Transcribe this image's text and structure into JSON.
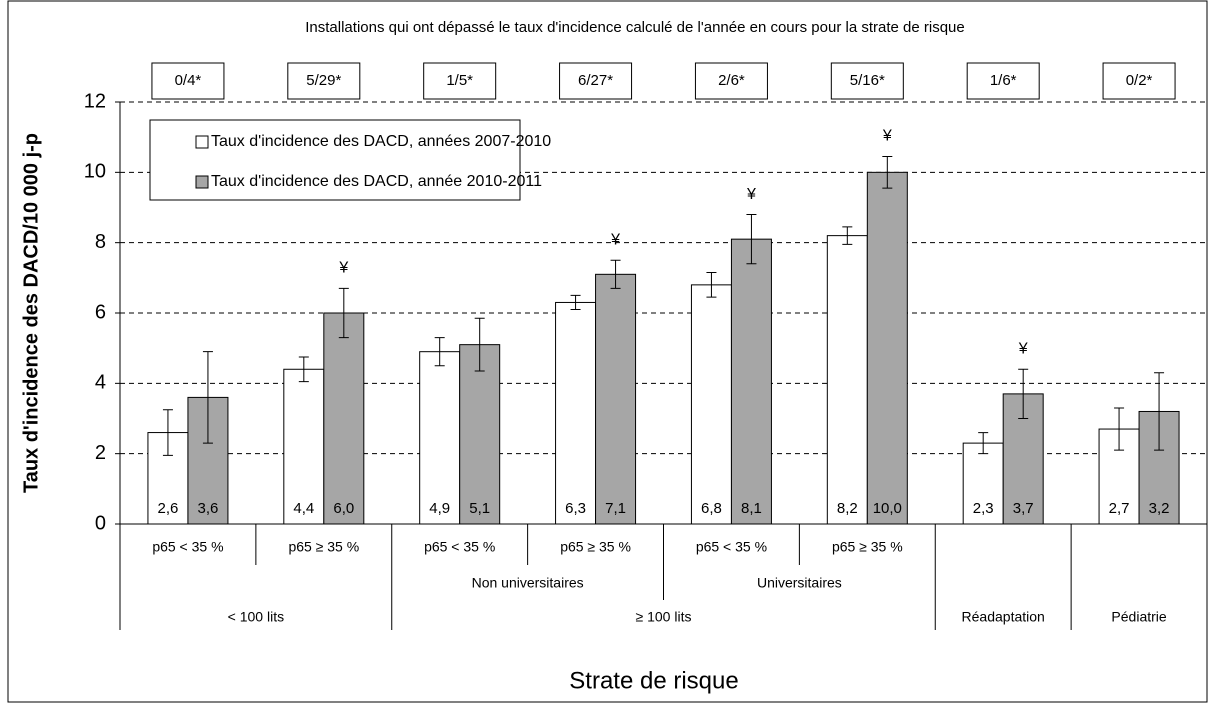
{
  "chart_data": {
    "type": "bar",
    "header": "Installations qui ont dépassé le taux d'incidence calculé de l'année en cours pour la strate de risque",
    "exceedances": [
      "0/4*",
      "5/29*",
      "1/5*",
      "6/27*",
      "2/6*",
      "5/16*",
      "1/6*",
      "0/2*"
    ],
    "x_label": "Strate de risque",
    "y_label": "Taux d'incidence des DACD/10 000 j-p",
    "categories": [
      [
        "p65 < 35 %",
        null,
        "< 100 lits"
      ],
      [
        "p65 ≥ 35 %",
        null,
        "< 100 lits"
      ],
      [
        "p65 < 35 %",
        "Non universitaires",
        "≥ 100 lits"
      ],
      [
        "p65 ≥ 35 %",
        "Non universitaires",
        "≥ 100 lits"
      ],
      [
        "p65 < 35 %",
        "Universitaires",
        "≥ 100 lits"
      ],
      [
        "p65 ≥ 35 %",
        "Universitaires",
        "≥ 100 lits"
      ],
      [
        null,
        null,
        "Réadaptation"
      ],
      [
        null,
        null,
        "Pédiatrie"
      ]
    ],
    "series": [
      {
        "name": "Taux d'incidence des DACD, années 2007-2010",
        "color": "#ffffff",
        "values": [
          2.6,
          4.4,
          4.9,
          6.3,
          6.8,
          8.2,
          2.3,
          2.7
        ],
        "value_labels": [
          "2,6",
          "4,4",
          "4,9",
          "6,3",
          "6,8",
          "8,2",
          "2,3",
          "2,7"
        ],
        "errors": [
          0.65,
          0.35,
          0.4,
          0.2,
          0.35,
          0.25,
          0.3,
          0.6
        ],
        "markers": [
          null,
          null,
          null,
          null,
          null,
          null,
          null,
          null
        ]
      },
      {
        "name": "Taux d'incidence des DACD, année 2010-2011",
        "color": "#a6a6a6",
        "values": [
          3.6,
          6.0,
          5.1,
          7.1,
          8.1,
          10.0,
          3.7,
          3.2
        ],
        "value_labels": [
          "3,6",
          "6,0",
          "5,1",
          "7,1",
          "8,1",
          "10,0",
          "3,7",
          "3,2"
        ],
        "errors": [
          1.3,
          0.7,
          0.75,
          0.4,
          0.7,
          0.45,
          0.7,
          1.1
        ],
        "markers": [
          null,
          "¥",
          null,
          "¥",
          "¥",
          "¥",
          "¥",
          null
        ]
      }
    ],
    "ylim": [
      0,
      12
    ],
    "yticks": [
      0,
      2,
      4,
      6,
      8,
      10,
      12
    ],
    "grid": true
  }
}
